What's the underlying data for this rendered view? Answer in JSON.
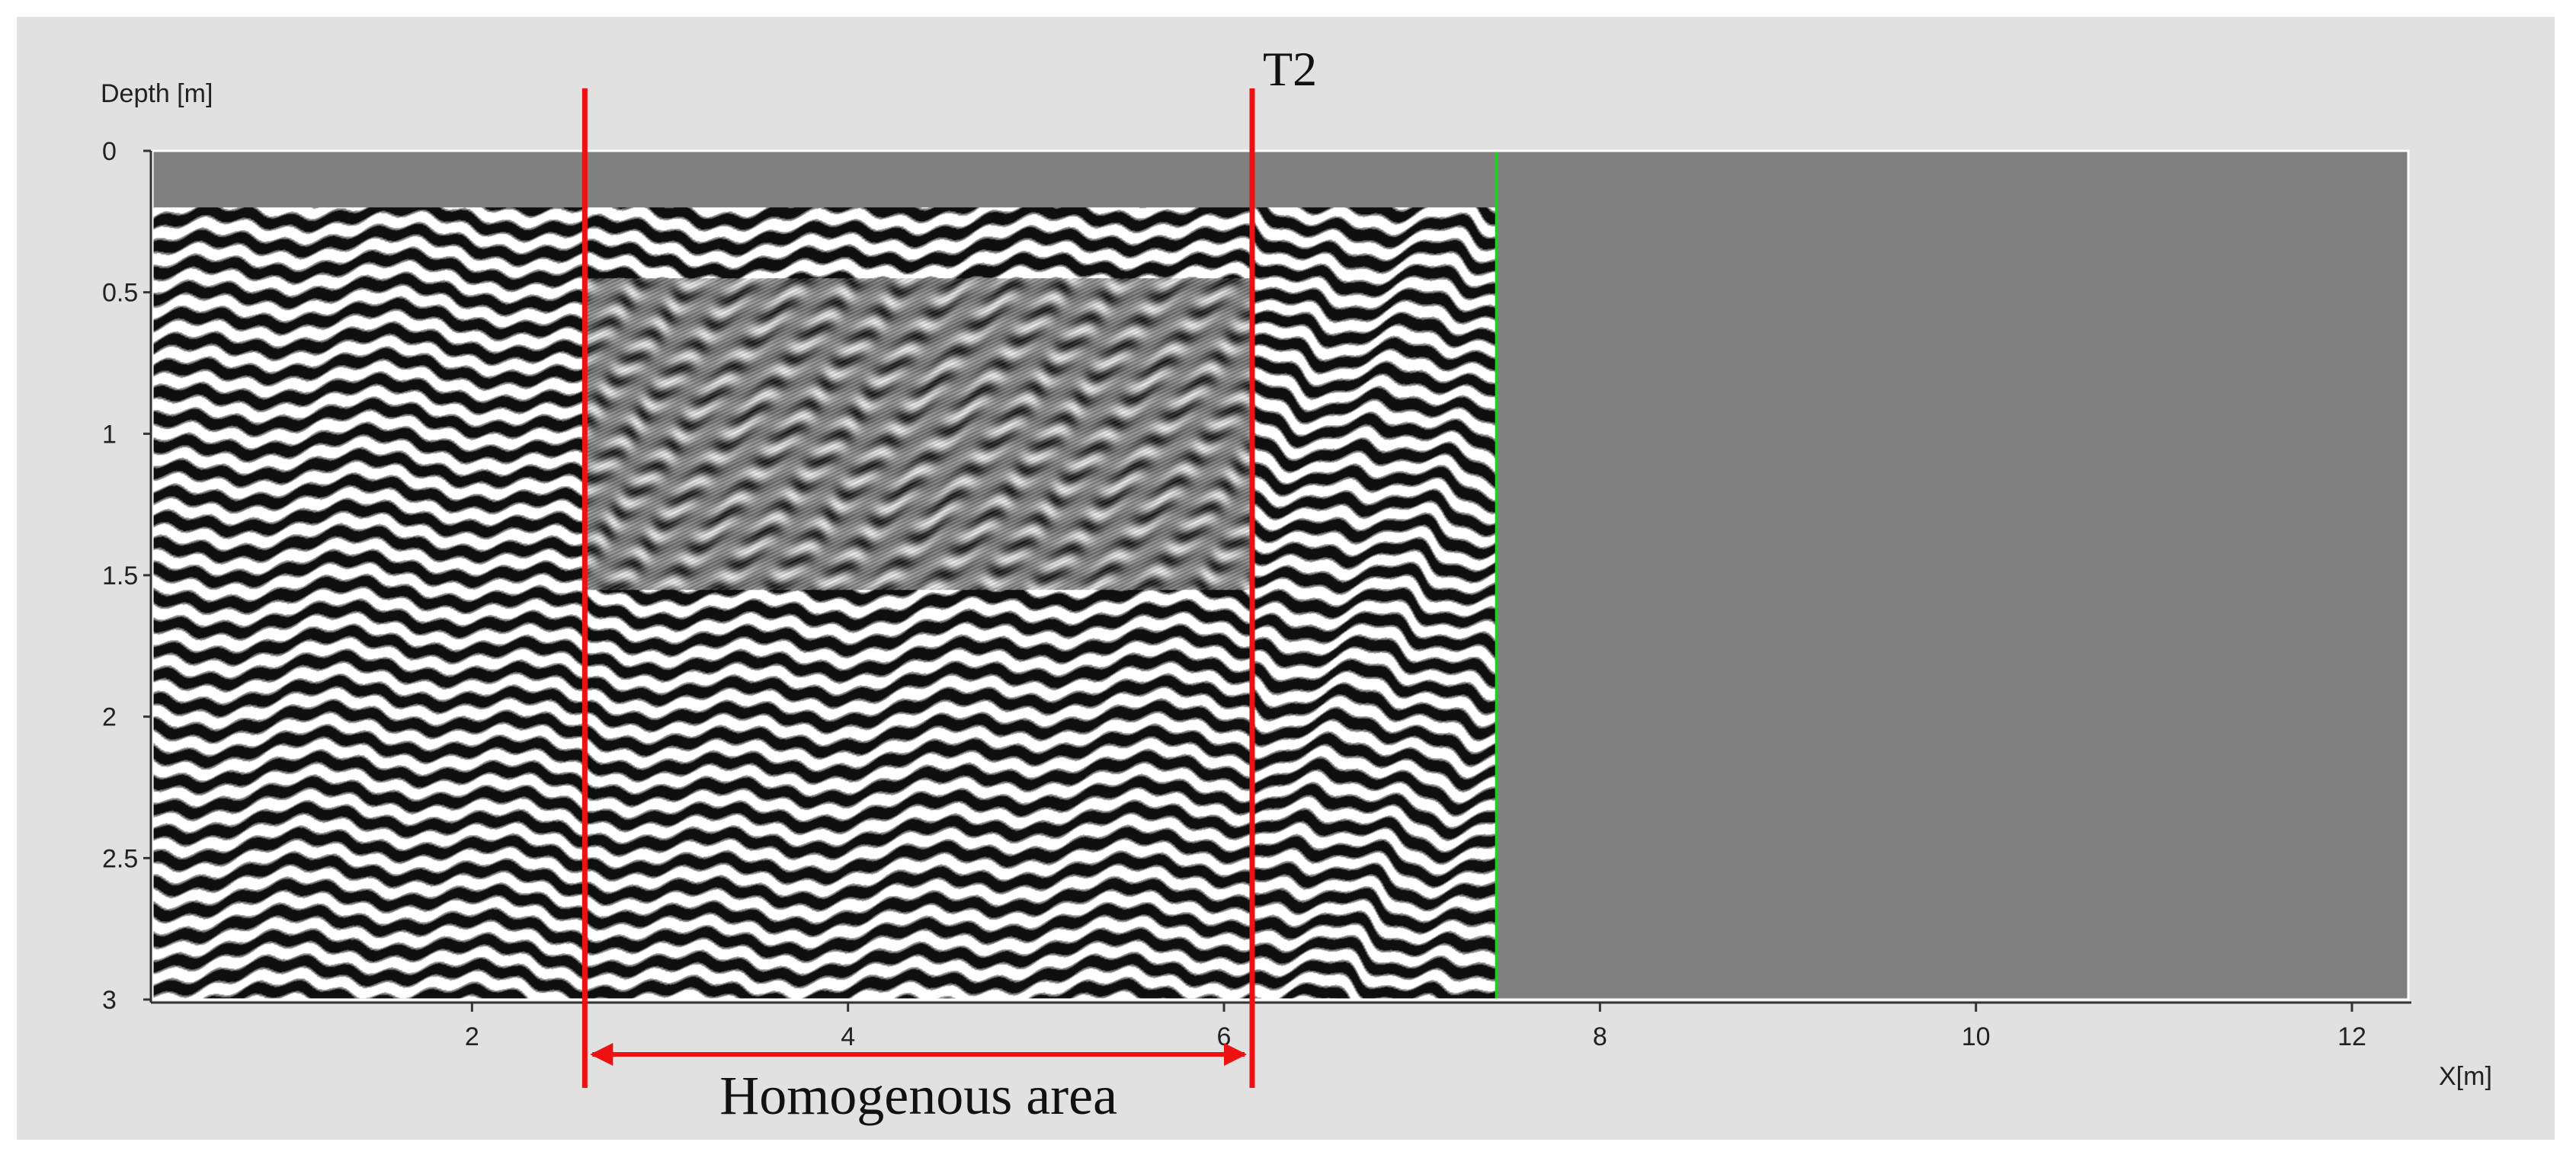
{
  "chart_data": {
    "type": "heatmap",
    "title": "",
    "xlabel": "X[m]",
    "ylabel": "Depth [m]",
    "xlim": [
      0.3,
      12.3
    ],
    "ylim": [
      0,
      3
    ],
    "y_inverted": true,
    "x_ticks": [
      "2",
      "4",
      "6",
      "8",
      "10",
      "12"
    ],
    "y_ticks": [
      "0",
      "0.5",
      "1",
      "1.5",
      "2",
      "2.5",
      "3"
    ],
    "data_extent_x": [
      0.3,
      7.45
    ],
    "ground_surface_depth_m": 0.2,
    "end_of_data_marker_x": 7.45,
    "background_fill_color": "#808080",
    "end_marker_color": "#22cc22",
    "annotations": {
      "markers": [
        {
          "label": "",
          "x": 2.6,
          "color": "#ee1111"
        },
        {
          "label": "T2",
          "x": 6.15,
          "color": "#ee1111"
        }
      ],
      "span": {
        "label": "Homogenous area",
        "x_start": 2.6,
        "x_end": 6.15,
        "color": "#ee1111"
      }
    }
  }
}
